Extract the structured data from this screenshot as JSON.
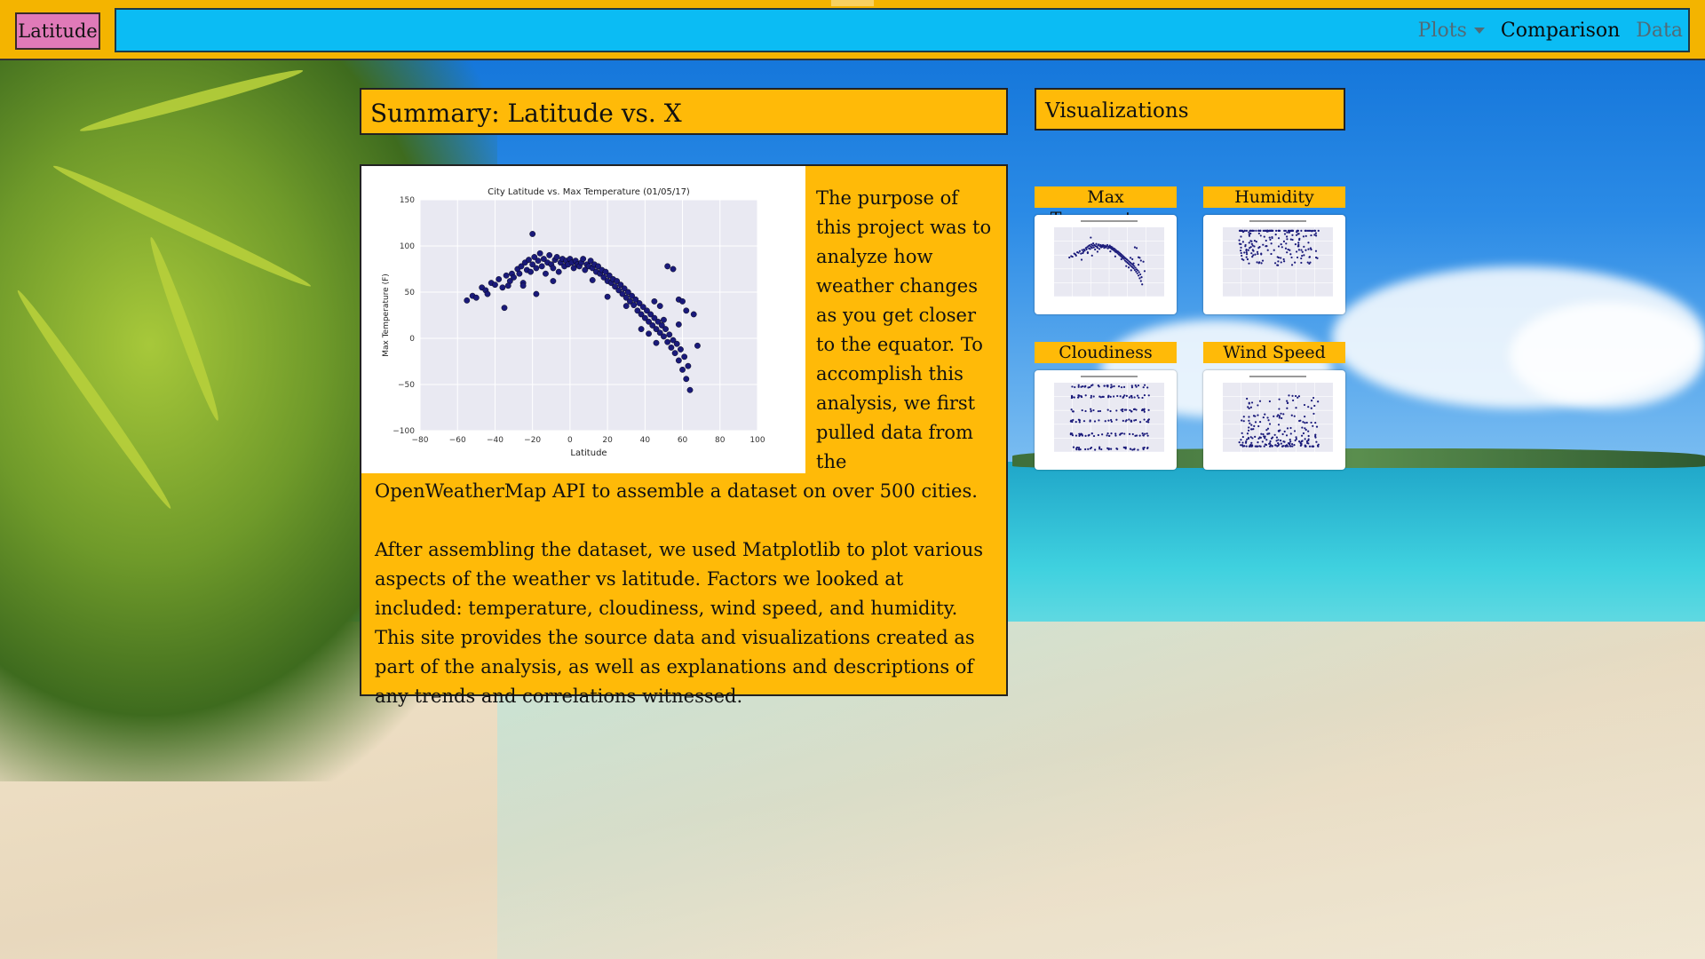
{
  "navbar": {
    "brand": "Latitude",
    "links": [
      {
        "label": "Plots",
        "has_dropdown": true,
        "active": false
      },
      {
        "label": "Comparison",
        "active": true
      },
      {
        "label": "Data",
        "active": false
      }
    ]
  },
  "summary": {
    "title": "Summary: Latitude vs. X",
    "paragraphs": [
      "The purpose of this project was to analyze how weather changes as you get closer to the equator. To accomplish this analysis, we first pulled data from the OpenWeatherMap API to assemble a dataset on over 500 cities.",
      "After assembling the dataset, we used Matplotlib to plot various aspects of the weather vs latitude. Factors we looked at included: temperature, cloudiness, wind speed, and humidity. This site provides the source data and visualizations created as part of the analysis, as well as explanations and descriptions of any trends and correlations witnessed."
    ]
  },
  "visualizations": {
    "title": "Visualizations",
    "items": [
      {
        "label": "Max Temperature"
      },
      {
        "label": "Humidity"
      },
      {
        "label": "Cloudiness"
      },
      {
        "label": "Wind Speed"
      }
    ]
  },
  "colors": {
    "panel": "#ffba08",
    "nav_inner": "#0bbcf4",
    "brand": "#e07ab8",
    "point": "#1a1a7a",
    "plot_bg": "#e9e9f2"
  },
  "chart_data": {
    "type": "scatter",
    "title": "City Latitude vs. Max Temperature (01/05/17)",
    "xlabel": "Latitude",
    "ylabel": "Max Temperature (F)",
    "xlim": [
      -80,
      100
    ],
    "ylim": [
      -100,
      150
    ],
    "xticks": [
      -80,
      -60,
      -40,
      -20,
      0,
      20,
      40,
      60,
      80,
      100
    ],
    "yticks": [
      -100,
      -50,
      0,
      50,
      100,
      150
    ],
    "grid": true,
    "points": [
      [
        -55,
        41
      ],
      [
        -52,
        46
      ],
      [
        -50,
        44
      ],
      [
        -47,
        55
      ],
      [
        -45,
        52
      ],
      [
        -44,
        48
      ],
      [
        -42,
        60
      ],
      [
        -40,
        58
      ],
      [
        -38,
        64
      ],
      [
        -36,
        55
      ],
      [
        -35,
        33
      ],
      [
        -34,
        68
      ],
      [
        -32,
        62
      ],
      [
        -31,
        70
      ],
      [
        -30,
        66
      ],
      [
        -28,
        75
      ],
      [
        -27,
        70
      ],
      [
        -26,
        78
      ],
      [
        -25,
        60
      ],
      [
        -24,
        82
      ],
      [
        -23,
        74
      ],
      [
        -22,
        85
      ],
      [
        -21,
        72
      ],
      [
        -20,
        80
      ],
      [
        -20,
        113
      ],
      [
        -19,
        88
      ],
      [
        -18,
        76
      ],
      [
        -18,
        48
      ],
      [
        -17,
        84
      ],
      [
        -16,
        92
      ],
      [
        -15,
        78
      ],
      [
        -14,
        86
      ],
      [
        -13,
        70
      ],
      [
        -12,
        82
      ],
      [
        -11,
        90
      ],
      [
        -10,
        80
      ],
      [
        -9,
        76
      ],
      [
        -8,
        85
      ],
      [
        -7,
        88
      ],
      [
        -6,
        72
      ],
      [
        -5,
        82
      ],
      [
        -4,
        86
      ],
      [
        -3,
        78
      ],
      [
        -2,
        84
      ],
      [
        -1,
        80
      ],
      [
        0,
        86
      ],
      [
        1,
        82
      ],
      [
        2,
        76
      ],
      [
        3,
        84
      ],
      [
        4,
        80
      ],
      [
        5,
        78
      ],
      [
        6,
        82
      ],
      [
        7,
        86
      ],
      [
        8,
        74
      ],
      [
        9,
        80
      ],
      [
        10,
        78
      ],
      [
        11,
        84
      ],
      [
        12,
        76
      ],
      [
        13,
        80
      ],
      [
        14,
        72
      ],
      [
        15,
        78
      ],
      [
        16,
        70
      ],
      [
        17,
        74
      ],
      [
        18,
        66
      ],
      [
        19,
        72
      ],
      [
        20,
        62
      ],
      [
        21,
        68
      ],
      [
        22,
        60
      ],
      [
        23,
        64
      ],
      [
        24,
        56
      ],
      [
        25,
        62
      ],
      [
        26,
        52
      ],
      [
        27,
        58
      ],
      [
        28,
        48
      ],
      [
        29,
        54
      ],
      [
        30,
        44
      ],
      [
        31,
        50
      ],
      [
        32,
        40
      ],
      [
        33,
        46
      ],
      [
        34,
        36
      ],
      [
        35,
        42
      ],
      [
        36,
        30
      ],
      [
        37,
        38
      ],
      [
        38,
        26
      ],
      [
        39,
        34
      ],
      [
        40,
        22
      ],
      [
        41,
        30
      ],
      [
        42,
        18
      ],
      [
        43,
        26
      ],
      [
        44,
        14
      ],
      [
        45,
        22
      ],
      [
        46,
        10
      ],
      [
        47,
        18
      ],
      [
        48,
        6
      ],
      [
        49,
        14
      ],
      [
        50,
        2
      ],
      [
        51,
        10
      ],
      [
        52,
        -4
      ],
      [
        53,
        4
      ],
      [
        54,
        -10
      ],
      [
        55,
        -2
      ],
      [
        56,
        -16
      ],
      [
        57,
        -6
      ],
      [
        58,
        -24
      ],
      [
        59,
        -12
      ],
      [
        60,
        -34
      ],
      [
        61,
        -20
      ],
      [
        62,
        -44
      ],
      [
        63,
        -30
      ],
      [
        64,
        -56
      ],
      [
        52,
        78
      ],
      [
        55,
        75
      ],
      [
        58,
        42
      ],
      [
        60,
        40
      ],
      [
        62,
        30
      ],
      [
        66,
        26
      ],
      [
        68,
        -8
      ],
      [
        45,
        40
      ],
      [
        48,
        35
      ],
      [
        50,
        20
      ],
      [
        -33,
        57
      ],
      [
        -25,
        57
      ],
      [
        -9,
        62
      ],
      [
        12,
        63
      ],
      [
        20,
        45
      ],
      [
        30,
        35
      ],
      [
        38,
        10
      ],
      [
        42,
        5
      ],
      [
        46,
        -5
      ],
      [
        58,
        15
      ]
    ]
  }
}
